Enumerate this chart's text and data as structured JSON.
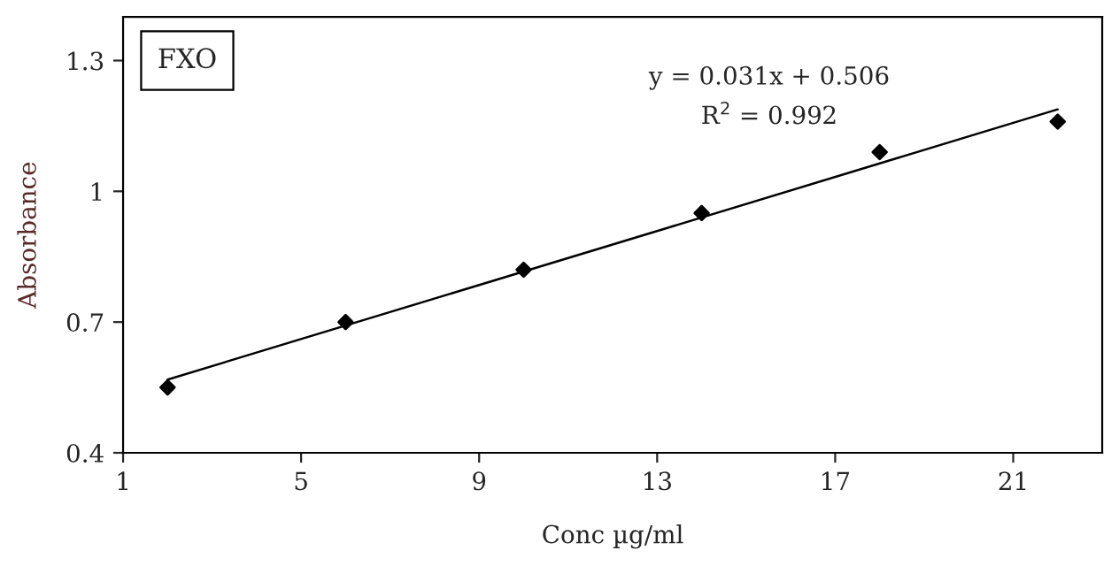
{
  "chart_data": {
    "type": "scatter",
    "xlabel": "Conc µg/ml",
    "ylabel": "Absorbance",
    "xlim": [
      1,
      23
    ],
    "xticks": [
      1,
      5,
      9,
      13,
      17,
      21
    ],
    "ylim": [
      0.4,
      1.4
    ],
    "yticks": [
      0.4,
      0.7,
      1,
      1.3
    ],
    "grid": false,
    "marker": "diamond",
    "series": [
      {
        "color": "#000000",
        "x": [
          2,
          6,
          10,
          14,
          18,
          22
        ],
        "values": [
          0.55,
          0.7,
          0.82,
          0.95,
          1.09,
          1.16
        ]
      },
      {
        "type": "line",
        "color": "#000000",
        "marker": "none",
        "x": [
          2,
          22
        ],
        "values": [
          0.568,
          1.188
        ]
      }
    ],
    "annotations": [
      "FXO",
      "y = 0.031x + 0.506",
      "R$^{2}$ = 0.992"
    ]
  }
}
